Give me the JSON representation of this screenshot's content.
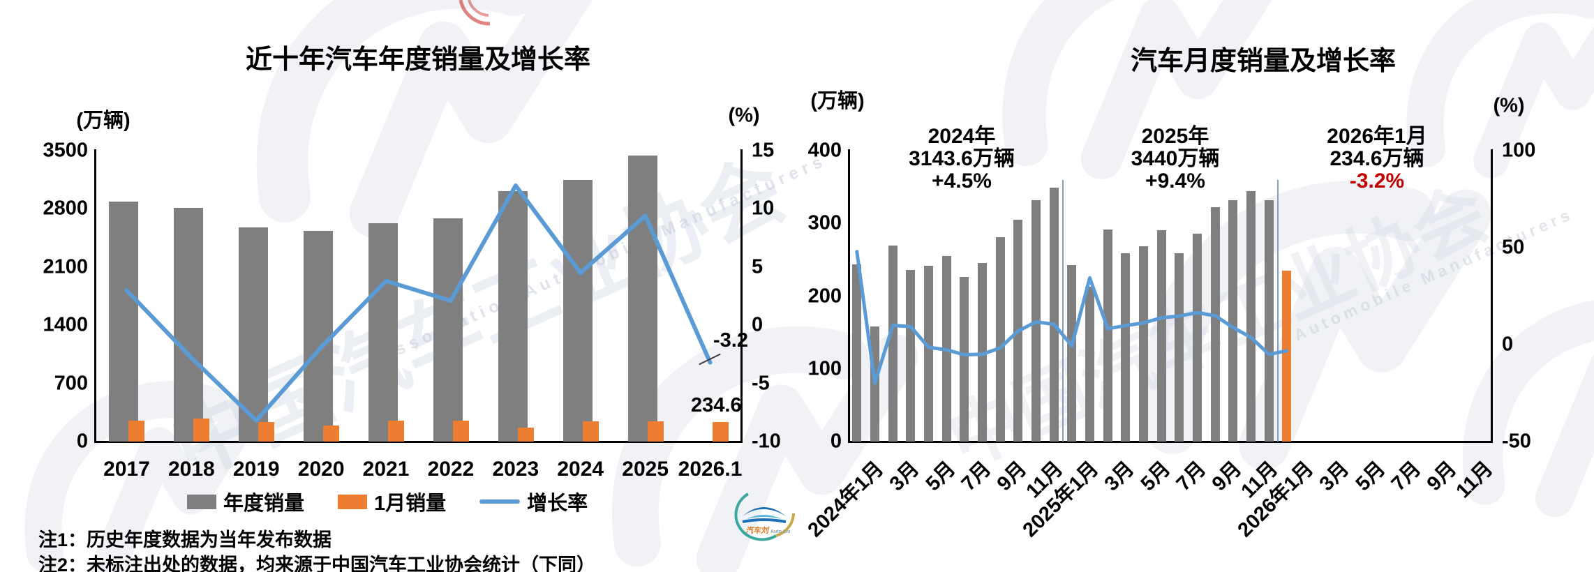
{
  "page": {
    "background": "#ffffff"
  },
  "colors": {
    "annual_bar": "#7f7f7f",
    "jan_bar": "#ED7D31",
    "growth_line": "#5B9BD5",
    "annotation_red": "#C00000",
    "axis": "#000000",
    "separator": "#7f9fc0",
    "watermark": "#eef1f6"
  },
  "left_chart": {
    "title": "近十年汽车年度销量及增长率",
    "unit_left": "(万辆)",
    "unit_right": "(%)",
    "y_left_ticks": [
      "3500",
      "2800",
      "2100",
      "1400",
      "700",
      "0"
    ],
    "y_right_ticks": [
      "15",
      "10",
      "5",
      "0",
      "-5",
      "-10"
    ],
    "x_labels": [
      "2017",
      "2018",
      "2019",
      "2020",
      "2021",
      "2022",
      "2023",
      "2024",
      "2025",
      "2026.1"
    ],
    "legend": [
      {
        "label": "年度销量",
        "type": "bar",
        "color": "#7f7f7f"
      },
      {
        "label": "1月销量",
        "type": "bar",
        "color": "#ED7D31"
      },
      {
        "label": "增长率",
        "type": "line",
        "color": "#5B9BD5"
      }
    ],
    "annotation_growth": "-3.2",
    "annotation_jan": "234.6"
  },
  "right_chart": {
    "title": "汽车月度销量及增长率",
    "unit_left": "(万辆)",
    "unit_right": "(%)",
    "y_left_ticks": [
      "400",
      "300",
      "200",
      "100",
      "0"
    ],
    "y_right_ticks": [
      "100",
      "50",
      "0",
      "-50"
    ],
    "x_labels": [
      "2024年1月",
      "3月",
      "5月",
      "7月",
      "9月",
      "11月",
      "2025年1月",
      "3月",
      "5月",
      "7月",
      "9月",
      "11月",
      "2026年1月",
      "3月",
      "5月",
      "7月",
      "9月",
      "11月"
    ],
    "annotations": [
      {
        "line1": "2024年",
        "line2": "3143.6万辆",
        "line3": "+4.5%",
        "line3_color": "#000000"
      },
      {
        "line1": "2025年",
        "line2": "3440万辆",
        "line3": "+9.4%",
        "line3_color": "#000000"
      },
      {
        "line1": "2026年1月",
        "line2": "234.6万辆",
        "line3": "-3.2%",
        "line3_color": "#C00000"
      }
    ]
  },
  "notes": {
    "note1": "注1：历史年度数据为当年发布数据",
    "note2": "注2：未标注出处的数据，均来源于中国汽车工业协会统计（下同）"
  },
  "logo": {
    "text_cn": "汽车刘",
    "text_en": "Auto Liu"
  },
  "watermarks": {
    "cn": "中国汽车工业协会",
    "en1": "Association Automobile Manufacturers",
    "en2": "Automobile Manufacturers"
  },
  "chart_data": [
    {
      "type": "bar",
      "subtype": "bar+line dual-axis",
      "title": "近十年汽车年度销量及增长率",
      "categories": [
        "2017",
        "2018",
        "2019",
        "2020",
        "2021",
        "2022",
        "2023",
        "2024",
        "2025",
        "2026.1"
      ],
      "series": [
        {
          "name": "年度销量",
          "type": "bar",
          "axis": "left",
          "color": "#7f7f7f",
          "values": [
            2887.9,
            2808.1,
            2576.9,
            2531.1,
            2627.5,
            2686.4,
            3009.4,
            3143.6,
            3440,
            null
          ]
        },
        {
          "name": "1月销量",
          "type": "bar",
          "axis": "left",
          "color": "#ED7D31",
          "values": [
            252.0,
            280.9,
            236.7,
            194.1,
            250.3,
            253.1,
            164.9,
            243.9,
            242.3,
            234.6
          ]
        },
        {
          "name": "增长率",
          "type": "line",
          "axis": "right",
          "color": "#5B9BD5",
          "values": [
            3.0,
            -2.8,
            -8.2,
            -1.9,
            3.8,
            2.1,
            12.0,
            4.5,
            9.4,
            -3.2
          ]
        }
      ],
      "ylabel_left": "(万辆)",
      "ylabel_right": "(%)",
      "ylim_left": [
        0,
        3500
      ],
      "ytick_step_left": 700,
      "ylim_right": [
        -10,
        15
      ],
      "ytick_step_right": 5,
      "grid": false,
      "legend_position": "bottom",
      "annotations": [
        {
          "text": "-3.2",
          "target": "2026.1 growth point"
        },
        {
          "text": "234.6",
          "target": "2026.1 jan bar"
        }
      ]
    },
    {
      "type": "bar",
      "subtype": "bar+line dual-axis",
      "title": "汽车月度销量及增长率",
      "x_slots": 36,
      "months": [
        "2024-1",
        "2024-2",
        "2024-3",
        "2024-4",
        "2024-5",
        "2024-6",
        "2024-7",
        "2024-8",
        "2024-9",
        "2024-10",
        "2024-11",
        "2024-12",
        "2025-1",
        "2025-2",
        "2025-3",
        "2025-4",
        "2025-5",
        "2025-6",
        "2025-7",
        "2025-8",
        "2025-9",
        "2025-10",
        "2025-11",
        "2025-12",
        "2026-1"
      ],
      "series": [
        {
          "name": "月度销量",
          "type": "bar",
          "axis": "left",
          "colors_note": "gray for 2024/2025, orange for 2026-1",
          "values": [
            243.9,
            158.4,
            269.4,
            235.9,
            241.7,
            255.2,
            226.2,
            245.3,
            280.9,
            305.3,
            331.6,
            348.9,
            242.3,
            212.9,
            291.5,
            259.0,
            268.6,
            290.4,
            259.3,
            285.7,
            322.6,
            332.2,
            343.9,
            331.6,
            234.6
          ]
        },
        {
          "name": "增长率",
          "type": "line",
          "axis": "right",
          "color": "#5B9BD5",
          "values": [
            47.9,
            -19.9,
            9.9,
            9.3,
            -1.4,
            -2.7,
            -5.2,
            -5.0,
            -1.7,
            7.0,
            11.7,
            10.5,
            -0.6,
            34.4,
            8.2,
            9.8,
            11.2,
            13.8,
            14.7,
            16.5,
            14.9,
            8.8,
            3.7,
            -5.0,
            -3.2
          ]
        }
      ],
      "ylabel_left": "(万辆)",
      "ylabel_right": "(%)",
      "ylim_left": [
        0,
        400
      ],
      "ytick_step_left": 100,
      "ylim_right": [
        -50,
        100
      ],
      "ytick_step_right": 50,
      "grid": false,
      "year_separators_before": [
        "2025-1",
        "2026-1"
      ],
      "annotations": [
        {
          "text": "2024年 3143.6万辆 +4.5%"
        },
        {
          "text": "2025年 3440万辆 +9.4%"
        },
        {
          "text": "2026年1月 234.6万辆 -3.2%",
          "highlight": "-3.2% in red"
        }
      ]
    }
  ]
}
